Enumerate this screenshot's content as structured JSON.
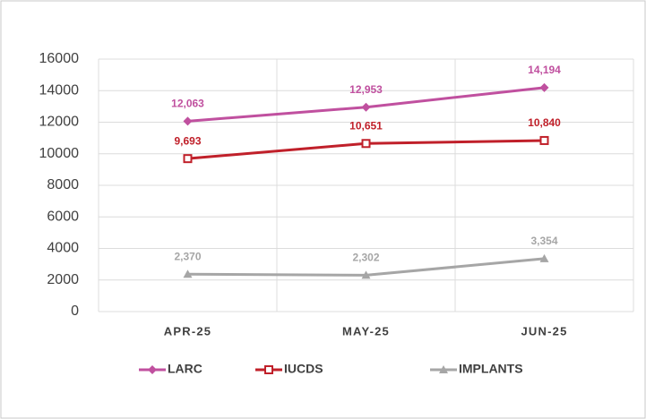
{
  "chart_data": {
    "type": "line",
    "categories": [
      "APR-25",
      "MAY-25",
      "JUN-25"
    ],
    "series": [
      {
        "name": "LARC",
        "color": "#c0509f",
        "marker": "diamond",
        "values": [
          12063,
          12953,
          14194
        ],
        "value_labels": [
          "12,063",
          "12,953",
          "14,194"
        ]
      },
      {
        "name": "IUCDS",
        "color": "#c0202a",
        "marker": "square",
        "values": [
          9693,
          10651,
          10840
        ],
        "value_labels": [
          "9,693",
          "10,651",
          "10,840"
        ]
      },
      {
        "name": "IMPLANTS",
        "color": "#a6a6a6",
        "marker": "triangle",
        "values": [
          2370,
          2302,
          3354
        ],
        "value_labels": [
          "2,370",
          "2,302",
          "3,354"
        ]
      }
    ],
    "ylim": [
      0,
      16000
    ],
    "yticks": [
      0,
      2000,
      4000,
      6000,
      8000,
      10000,
      12000,
      14000,
      16000
    ],
    "grid": true,
    "legend": "bottom"
  }
}
